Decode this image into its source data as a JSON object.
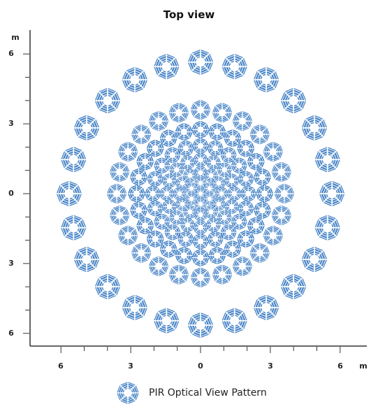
{
  "title": "Top view",
  "axes": {
    "unit_label": "m",
    "y_tick_labels": [
      "6",
      "3",
      "0",
      "3",
      "6"
    ],
    "x_tick_labels": [
      "6",
      "3",
      "0",
      "3",
      "6"
    ],
    "range": [
      -6.5,
      6.5
    ],
    "major_ticks": [
      -6,
      -3,
      0,
      3,
      6
    ],
    "minor_tick_step": 1
  },
  "pattern": {
    "shape": "octagonal-lens-zone",
    "fill_color": "#4a86c8",
    "rings": [
      {
        "radius_m": 0,
        "count": 1,
        "size": 0.27
      },
      {
        "radius_m": 0.45,
        "count": 6,
        "size": 0.27
      },
      {
        "radius_m": 0.9,
        "count": 12,
        "size": 0.3
      },
      {
        "radius_m": 1.45,
        "count": 16,
        "size": 0.32
      },
      {
        "radius_m": 2.05,
        "count": 20,
        "size": 0.35
      },
      {
        "radius_m": 2.75,
        "count": 24,
        "size": 0.38
      },
      {
        "radius_m": 3.6,
        "count": 24,
        "size": 0.43
      },
      {
        "radius_m": 5.65,
        "count": 24,
        "size": 0.55
      }
    ]
  },
  "legend": {
    "label": "PIR Optical View Pattern",
    "icon": "pir-zone-icon"
  }
}
